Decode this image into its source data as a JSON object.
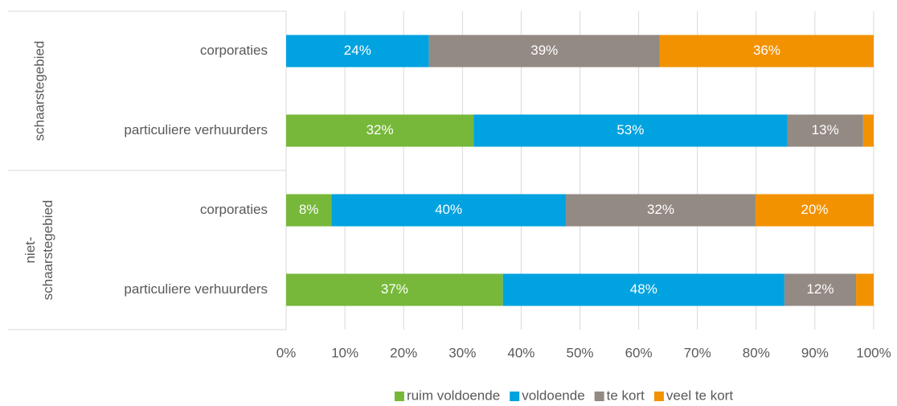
{
  "chart_data": {
    "type": "stacked_barh",
    "groups": [
      {
        "name": "schaarstegebied",
        "categories": [
          0,
          1
        ]
      },
      {
        "name": "niet-schaarstegebied",
        "categories": [
          2,
          3
        ]
      }
    ],
    "categories": [
      "corporaties",
      "particuliere verhuurders",
      "corporaties",
      "particuliere verhuurders"
    ],
    "series": [
      {
        "name": "ruim voldoende",
        "color": "#77b83a",
        "values": [
          0,
          31.9,
          7.7,
          36.9
        ],
        "value_labels": [
          null,
          "32%",
          "8%",
          "37%"
        ]
      },
      {
        "name": "voldoende",
        "color": "#00a2e0",
        "values": [
          24.3,
          53.4,
          39.9,
          47.9
        ],
        "value_labels": [
          "24%",
          "53%",
          "40%",
          "48%"
        ]
      },
      {
        "name": "te kort",
        "color": "#948a84",
        "values": [
          39.3,
          12.9,
          32.3,
          12.2
        ],
        "value_labels": [
          "39%",
          "13%",
          "32%",
          "12%"
        ]
      },
      {
        "name": "veel te kort",
        "color": "#f39200",
        "values": [
          36.4,
          1.8,
          20.1,
          3.0
        ],
        "value_labels": [
          "36%",
          null,
          "20%",
          null
        ]
      }
    ],
    "xlim": [
      0,
      100
    ],
    "xticks": [
      {
        "value": 0,
        "label": "0%"
      },
      {
        "value": 10,
        "label": "10%"
      },
      {
        "value": 20,
        "label": "20%"
      },
      {
        "value": 30,
        "label": "30%"
      },
      {
        "value": 40,
        "label": "40%"
      },
      {
        "value": 50,
        "label": "50%"
      },
      {
        "value": 60,
        "label": "60%"
      },
      {
        "value": 70,
        "label": "70%"
      },
      {
        "value": 80,
        "label": "80%"
      },
      {
        "value": 90,
        "label": "90%"
      },
      {
        "value": 100,
        "label": "100%"
      }
    ],
    "grid": true,
    "legend": "bottom"
  }
}
